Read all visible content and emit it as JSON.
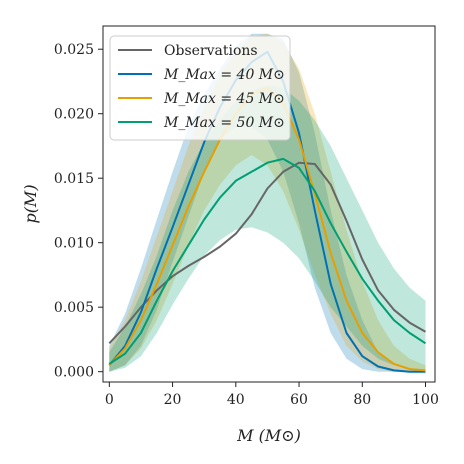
{
  "chart_data": {
    "type": "line",
    "xlabel": "M (M⊙)",
    "ylabel": "p(M)",
    "xlim": [
      -2,
      103
    ],
    "ylim": [
      -0.0008,
      0.0268
    ],
    "xticks": [
      0,
      20,
      40,
      60,
      80,
      100
    ],
    "yticks": [
      0.0,
      0.005,
      0.01,
      0.015,
      0.02,
      0.025
    ],
    "ytick_labels": [
      "0.000",
      "0.005",
      "0.010",
      "0.015",
      "0.020",
      "0.025"
    ],
    "legend_placement": "top-left",
    "x": [
      0,
      5,
      10,
      15,
      20,
      25,
      30,
      35,
      40,
      45,
      50,
      55,
      60,
      65,
      70,
      75,
      80,
      85,
      90,
      95,
      100
    ],
    "series": [
      {
        "name": "Observations",
        "color": "#666666",
        "values": [
          0.0022,
          0.0035,
          0.005,
          0.0063,
          0.0074,
          0.0082,
          0.0089,
          0.0097,
          0.0107,
          0.0122,
          0.0142,
          0.0155,
          0.0162,
          0.0161,
          0.0145,
          0.0117,
          0.0087,
          0.0063,
          0.0048,
          0.0038,
          0.0031
        ],
        "band": null
      },
      {
        "name": "M_Max = 40 M⊙",
        "color": "#0072b2",
        "values": [
          0.0005,
          0.002,
          0.0046,
          0.008,
          0.0112,
          0.0145,
          0.0178,
          0.0205,
          0.0226,
          0.024,
          0.0248,
          0.0225,
          0.0185,
          0.0125,
          0.0068,
          0.003,
          0.0012,
          0.0004,
          0.0001,
          0.0,
          0.0
        ],
        "lower": [
          0.0,
          0.0005,
          0.002,
          0.0048,
          0.0085,
          0.012,
          0.0155,
          0.018,
          0.019,
          0.019,
          0.018,
          0.0155,
          0.0115,
          0.0065,
          0.003,
          0.001,
          0.0002,
          0.0,
          0.0,
          0.0,
          0.0
        ],
        "upper": [
          0.002,
          0.0045,
          0.008,
          0.0118,
          0.0155,
          0.019,
          0.0215,
          0.0235,
          0.0252,
          0.0262,
          0.0262,
          0.0258,
          0.0232,
          0.0185,
          0.0125,
          0.0075,
          0.004,
          0.0015,
          0.0005,
          0.0002,
          0.0001
        ]
      },
      {
        "name": "M_Max = 45 M⊙",
        "color": "#e69f00",
        "values": [
          0.0005,
          0.0018,
          0.004,
          0.0068,
          0.0098,
          0.0128,
          0.0155,
          0.018,
          0.02,
          0.0215,
          0.022,
          0.0208,
          0.018,
          0.0138,
          0.0092,
          0.0055,
          0.003,
          0.0015,
          0.0006,
          0.0002,
          0.0001
        ],
        "lower": [
          0.0,
          0.0005,
          0.0018,
          0.004,
          0.0068,
          0.0098,
          0.0125,
          0.0145,
          0.016,
          0.0168,
          0.016,
          0.014,
          0.011,
          0.0075,
          0.0045,
          0.002,
          0.0008,
          0.0002,
          0.0,
          0.0,
          0.0
        ],
        "upper": [
          0.0018,
          0.004,
          0.007,
          0.0105,
          0.014,
          0.0175,
          0.0205,
          0.023,
          0.0248,
          0.026,
          0.0262,
          0.0255,
          0.0235,
          0.02,
          0.0155,
          0.011,
          0.007,
          0.004,
          0.002,
          0.001,
          0.0005
        ]
      },
      {
        "name": "M_Max = 50 M⊙",
        "color": "#009e73",
        "values": [
          0.0006,
          0.0014,
          0.003,
          0.0055,
          0.0078,
          0.0098,
          0.0118,
          0.0135,
          0.0148,
          0.0155,
          0.0162,
          0.0165,
          0.0158,
          0.014,
          0.0115,
          0.0093,
          0.0072,
          0.0055,
          0.004,
          0.003,
          0.0022
        ],
        "lower": [
          0.0,
          0.0003,
          0.0012,
          0.003,
          0.0052,
          0.0072,
          0.009,
          0.0102,
          0.011,
          0.0112,
          0.0108,
          0.01,
          0.0088,
          0.007,
          0.005,
          0.0035,
          0.002,
          0.001,
          0.0005,
          0.0002,
          0.0001
        ],
        "upper": [
          0.0015,
          0.0035,
          0.006,
          0.009,
          0.0125,
          0.0155,
          0.0178,
          0.0195,
          0.021,
          0.0218,
          0.0222,
          0.022,
          0.021,
          0.0195,
          0.0175,
          0.015,
          0.0125,
          0.01,
          0.008,
          0.0065,
          0.0055
        ]
      }
    ]
  }
}
